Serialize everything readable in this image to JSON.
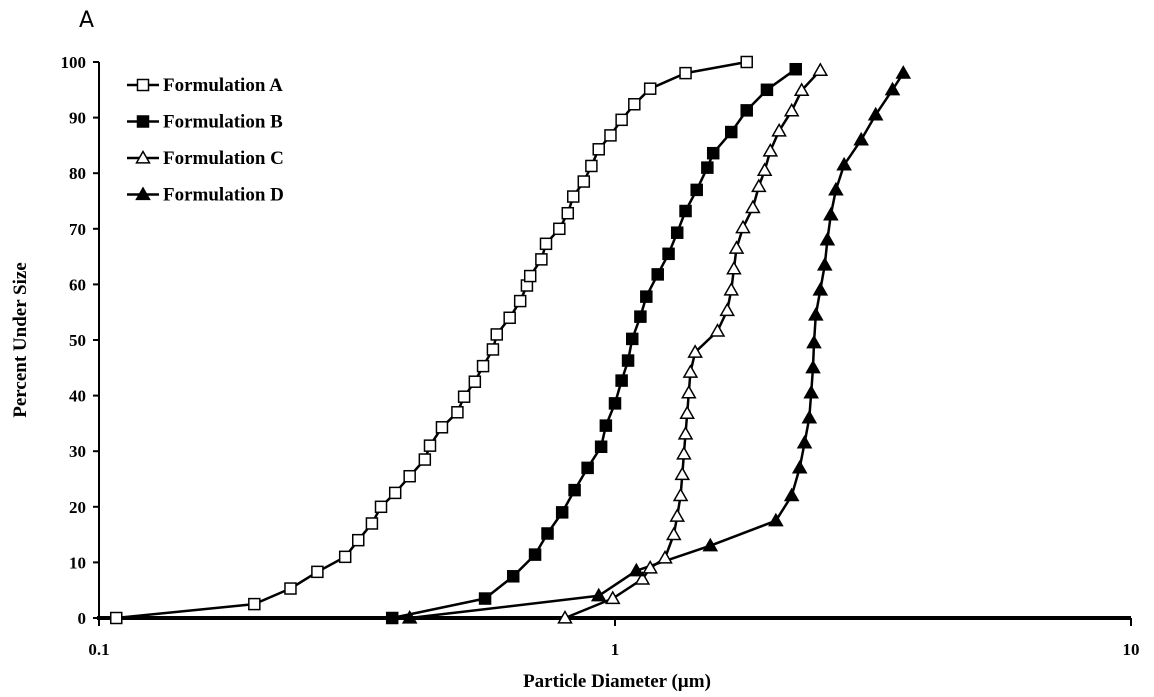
{
  "panel_label": "A",
  "chart_data": {
    "type": "line",
    "xlabel": "Particle Diameter (µm)",
    "ylabel": "Percent Under Size",
    "x_scale": "log",
    "xlim": [
      0.1,
      10
    ],
    "ylim": [
      0,
      100
    ],
    "x_ticks": [
      {
        "value": 0.1,
        "label": "0.1"
      },
      {
        "value": 1,
        "label": "1"
      },
      {
        "value": 10,
        "label": "10"
      }
    ],
    "y_ticks": [
      {
        "value": 0,
        "label": "0"
      },
      {
        "value": 10,
        "label": "10"
      },
      {
        "value": 20,
        "label": "20"
      },
      {
        "value": 30,
        "label": "30"
      },
      {
        "value": 40,
        "label": "40"
      },
      {
        "value": 50,
        "label": "50"
      },
      {
        "value": 60,
        "label": "60"
      },
      {
        "value": 70,
        "label": "70"
      },
      {
        "value": 80,
        "label": "80"
      },
      {
        "value": 90,
        "label": "90"
      },
      {
        "value": 100,
        "label": "100"
      }
    ],
    "grid": false,
    "legend_position": "top-left",
    "series": [
      {
        "name": "Formulation A",
        "marker": "open-square",
        "color": "#000000",
        "points": [
          [
            0.108,
            0
          ],
          [
            0.2,
            2.5
          ],
          [
            0.235,
            5.3
          ],
          [
            0.265,
            8.3
          ],
          [
            0.3,
            11
          ],
          [
            0.318,
            14
          ],
          [
            0.338,
            17
          ],
          [
            0.352,
            20
          ],
          [
            0.375,
            22.5
          ],
          [
            0.4,
            25.5
          ],
          [
            0.428,
            28.5
          ],
          [
            0.438,
            31
          ],
          [
            0.462,
            34.3
          ],
          [
            0.495,
            37
          ],
          [
            0.51,
            39.8
          ],
          [
            0.535,
            42.5
          ],
          [
            0.555,
            45.3
          ],
          [
            0.58,
            48.3
          ],
          [
            0.59,
            51
          ],
          [
            0.625,
            54
          ],
          [
            0.655,
            57
          ],
          [
            0.675,
            59.8
          ],
          [
            0.685,
            61.5
          ],
          [
            0.72,
            64.5
          ],
          [
            0.735,
            67.3
          ],
          [
            0.78,
            70
          ],
          [
            0.81,
            72.8
          ],
          [
            0.83,
            75.8
          ],
          [
            0.87,
            78.5
          ],
          [
            0.9,
            81.3
          ],
          [
            0.93,
            84.3
          ],
          [
            0.98,
            86.8
          ],
          [
            1.03,
            89.6
          ],
          [
            1.09,
            92.4
          ],
          [
            1.17,
            95.2
          ],
          [
            1.37,
            98
          ],
          [
            1.8,
            100
          ]
        ]
      },
      {
        "name": "Formulation B",
        "marker": "filled-square",
        "color": "#000000",
        "points": [
          [
            0.37,
            0
          ],
          [
            0.56,
            3.5
          ],
          [
            0.635,
            7.5
          ],
          [
            0.7,
            11.4
          ],
          [
            0.74,
            15.2
          ],
          [
            0.79,
            19
          ],
          [
            0.835,
            23
          ],
          [
            0.885,
            27
          ],
          [
            0.94,
            30.8
          ],
          [
            0.96,
            34.6
          ],
          [
            1.0,
            38.6
          ],
          [
            1.03,
            42.7
          ],
          [
            1.06,
            46.3
          ],
          [
            1.08,
            50.2
          ],
          [
            1.12,
            54.2
          ],
          [
            1.15,
            57.8
          ],
          [
            1.21,
            61.8
          ],
          [
            1.27,
            65.5
          ],
          [
            1.32,
            69.3
          ],
          [
            1.37,
            73.2
          ],
          [
            1.44,
            77
          ],
          [
            1.51,
            81
          ],
          [
            1.55,
            83.6
          ],
          [
            1.68,
            87.4
          ],
          [
            1.8,
            91.3
          ],
          [
            1.97,
            95
          ],
          [
            2.24,
            98.7
          ]
        ]
      },
      {
        "name": "Formulation C",
        "marker": "open-triangle",
        "color": "#000000",
        "points": [
          [
            0.8,
            0
          ],
          [
            0.99,
            3.5
          ],
          [
            1.13,
            7
          ],
          [
            1.17,
            9
          ],
          [
            1.25,
            10.8
          ],
          [
            1.3,
            15
          ],
          [
            1.32,
            18.3
          ],
          [
            1.34,
            22
          ],
          [
            1.35,
            25.8
          ],
          [
            1.36,
            29.5
          ],
          [
            1.37,
            33.1
          ],
          [
            1.38,
            36.8
          ],
          [
            1.39,
            40.5
          ],
          [
            1.4,
            44.2
          ],
          [
            1.43,
            47.8
          ],
          [
            1.58,
            51.6
          ],
          [
            1.65,
            55.3
          ],
          [
            1.68,
            59
          ],
          [
            1.7,
            62.8
          ],
          [
            1.72,
            66.5
          ],
          [
            1.77,
            70.2
          ],
          [
            1.85,
            73.8
          ],
          [
            1.9,
            77.6
          ],
          [
            1.95,
            80.5
          ],
          [
            2.0,
            84
          ],
          [
            2.08,
            87.6
          ],
          [
            2.2,
            91.2
          ],
          [
            2.3,
            94.9
          ],
          [
            2.5,
            98.5
          ]
        ]
      },
      {
        "name": "Formulation D",
        "marker": "filled-triangle",
        "color": "#000000",
        "points": [
          [
            0.4,
            0
          ],
          [
            0.93,
            4
          ],
          [
            1.1,
            8.5
          ],
          [
            1.53,
            13
          ],
          [
            2.05,
            17.5
          ],
          [
            2.2,
            22
          ],
          [
            2.28,
            27
          ],
          [
            2.33,
            31.5
          ],
          [
            2.38,
            36
          ],
          [
            2.4,
            40.5
          ],
          [
            2.42,
            45
          ],
          [
            2.43,
            49.5
          ],
          [
            2.45,
            54.5
          ],
          [
            2.5,
            59
          ],
          [
            2.55,
            63.5
          ],
          [
            2.58,
            68
          ],
          [
            2.62,
            72.5
          ],
          [
            2.68,
            77
          ],
          [
            2.78,
            81.5
          ],
          [
            3.0,
            86
          ],
          [
            3.2,
            90.5
          ],
          [
            3.45,
            95
          ],
          [
            3.62,
            98
          ]
        ]
      }
    ]
  }
}
